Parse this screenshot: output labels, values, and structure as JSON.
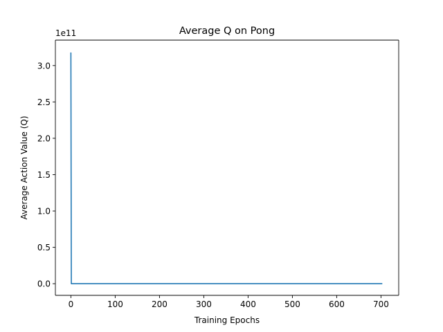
{
  "chart_data": {
    "type": "line",
    "title": "Average Q on Pong",
    "xlabel": "Training Epochs",
    "ylabel": "Average Action Value (Q)",
    "offset_label": "1e11",
    "xlim": [
      -35,
      740
    ],
    "ylim": [
      -16000000000.0,
      335000000000.0
    ],
    "xticks": [
      0,
      100,
      200,
      300,
      400,
      500,
      600,
      700
    ],
    "xtick_labels": [
      "0",
      "100",
      "200",
      "300",
      "400",
      "500",
      "600",
      "700"
    ],
    "yticks": [
      0,
      50000000000.0,
      100000000000.0,
      150000000000.0,
      200000000000.0,
      250000000000.0,
      300000000000.0
    ],
    "ytick_labels": [
      "0.0",
      "0.5",
      "1.0",
      "1.5",
      "2.0",
      "2.5",
      "3.0"
    ],
    "grid": false,
    "series": [
      {
        "color": "#1f77b4",
        "x": [
          0,
          1,
          2,
          10,
          50,
          100,
          200,
          300,
          400,
          500,
          600,
          700,
          703
        ],
        "y": [
          318000000000.0,
          0.0,
          0.0,
          0.0,
          0.0,
          0.0,
          0.0,
          0.0,
          0.0,
          0.0,
          0.0,
          0.0,
          0.0
        ]
      }
    ]
  }
}
